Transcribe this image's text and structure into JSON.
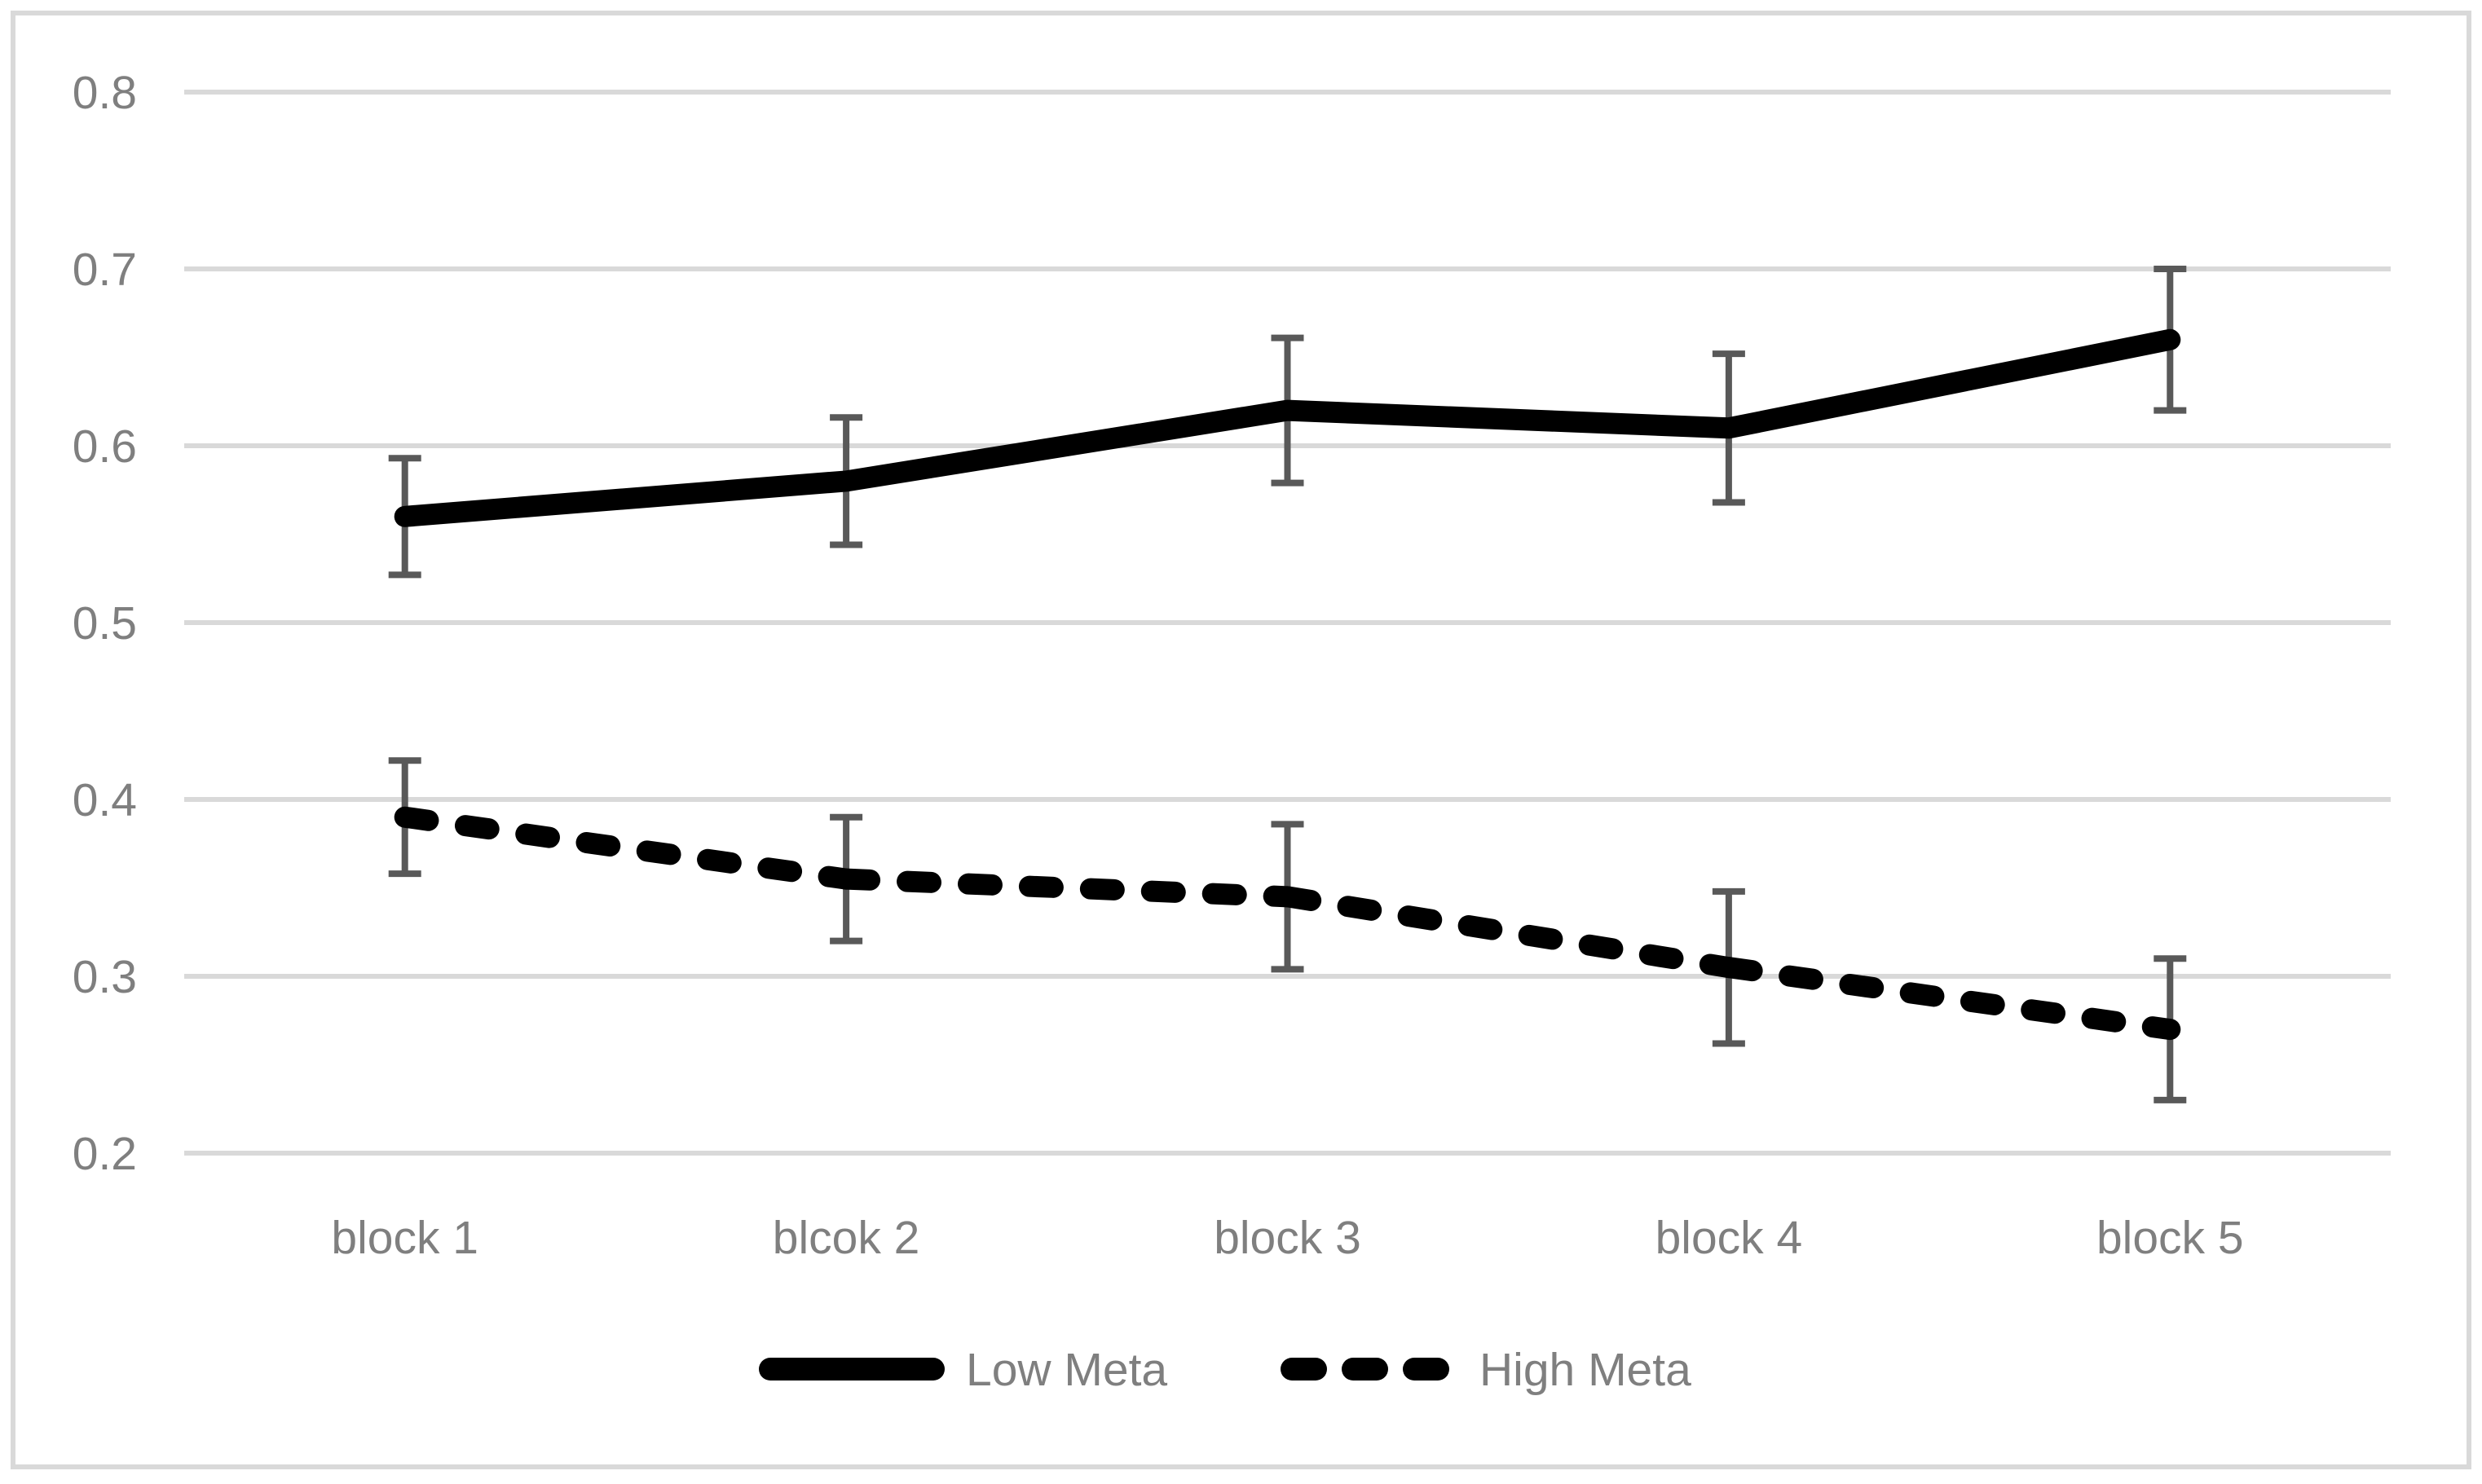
{
  "figure": {
    "background": "#ffffff",
    "border_color": "#d9d9d9"
  },
  "chart_data": {
    "type": "line",
    "title": "",
    "xlabel": "",
    "ylabel": "",
    "categories": [
      "block 1",
      "blcok 2",
      "block 3",
      "block 4",
      "block 5"
    ],
    "series": [
      {
        "name": "Low Meta",
        "line_style": "solid",
        "color": "#000000",
        "values": [
          0.56,
          0.58,
          0.62,
          0.61,
          0.66
        ],
        "error_bars": [
          0.033,
          0.036,
          0.041,
          0.042,
          0.04
        ]
      },
      {
        "name": "High Meta",
        "line_style": "dashed",
        "color": "#000000",
        "values": [
          0.39,
          0.355,
          0.345,
          0.305,
          0.27
        ],
        "error_bars": [
          0.032,
          0.035,
          0.041,
          0.043,
          0.04
        ]
      }
    ],
    "ylim": [
      0.2,
      0.8
    ],
    "ytick_step": 0.1,
    "yticks": [
      0.8,
      0.7,
      0.6,
      0.5,
      0.4,
      0.3,
      0.2
    ],
    "ytick_labels": [
      "0.8",
      "0.7",
      "0.6",
      "0.5",
      "0.4",
      "0.3",
      "0.2"
    ],
    "grid": true,
    "gridline_color": "#d9d9d9",
    "error_bar_color": "#595959",
    "tick_label_color": "#7f7f7f",
    "legend_position": "bottom-center",
    "legend_text_color": "#7f7f7f"
  }
}
